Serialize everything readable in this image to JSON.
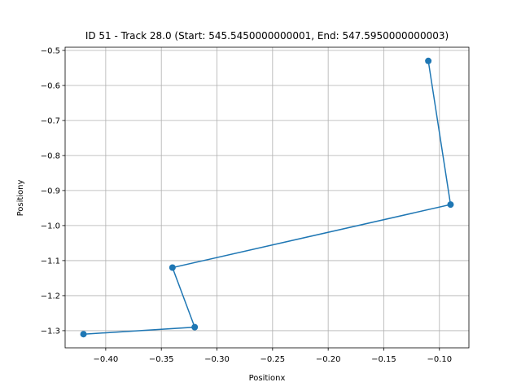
{
  "chart_data": {
    "type": "line",
    "title": "ID 51 - Track 28.0 (Start: 545.5450000000001, End: 547.5950000000003)",
    "xlabel": "Positionx",
    "ylabel": "Positiony",
    "xlim": [
      -0.4365,
      -0.0735
    ],
    "ylim": [
      -1.349,
      -0.491
    ],
    "grid": true,
    "xticks": [
      -0.4,
      -0.35,
      -0.3,
      -0.25,
      -0.2,
      -0.15,
      -0.1
    ],
    "xtick_labels": [
      "−0.40",
      "−0.35",
      "−0.30",
      "−0.25",
      "−0.20",
      "−0.15",
      "−0.10"
    ],
    "yticks": [
      -0.5,
      -0.6,
      -0.7,
      -0.8,
      -0.9,
      -1.0,
      -1.1,
      -1.2,
      -1.3
    ],
    "ytick_labels": [
      "−0.5",
      "−0.6",
      "−0.7",
      "−0.8",
      "−0.9",
      "−1.0",
      "−1.1",
      "−1.2",
      "−1.3"
    ],
    "series": [
      {
        "color": "#1f77b4",
        "marker": "circle",
        "x": [
          -0.11,
          -0.09,
          -0.34,
          -0.32,
          -0.42
        ],
        "y": [
          -0.53,
          -0.94,
          -1.12,
          -1.29,
          -1.31
        ]
      }
    ]
  }
}
